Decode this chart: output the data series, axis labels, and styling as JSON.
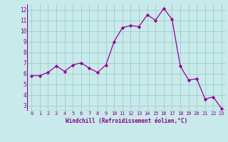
{
  "x": [
    0,
    1,
    2,
    3,
    4,
    5,
    6,
    7,
    8,
    9,
    10,
    11,
    12,
    13,
    14,
    15,
    16,
    17,
    18,
    19,
    20,
    21,
    22,
    23
  ],
  "y": [
    5.8,
    5.8,
    6.1,
    6.7,
    6.2,
    6.8,
    7.0,
    6.5,
    6.1,
    6.8,
    9.0,
    10.3,
    10.5,
    10.4,
    11.5,
    11.0,
    12.1,
    11.1,
    6.7,
    5.4,
    5.5,
    3.6,
    3.8,
    2.7
  ],
  "line_color": "#990099",
  "marker": "D",
  "marker_size": 2.2,
  "bg_color": "#c8eaea",
  "grid_color": "#a0cccc",
  "xlabel": "Windchill (Refroidissement éolien,°C)",
  "xlabel_color": "#880088",
  "tick_color": "#880088",
  "ylim": [
    2.5,
    12.5
  ],
  "xlim": [
    -0.5,
    23.5
  ],
  "yticks": [
    3,
    4,
    5,
    6,
    7,
    8,
    9,
    10,
    11,
    12
  ],
  "xticks": [
    0,
    1,
    2,
    3,
    4,
    5,
    6,
    7,
    8,
    9,
    10,
    11,
    12,
    13,
    14,
    15,
    16,
    17,
    18,
    19,
    20,
    21,
    22,
    23
  ]
}
